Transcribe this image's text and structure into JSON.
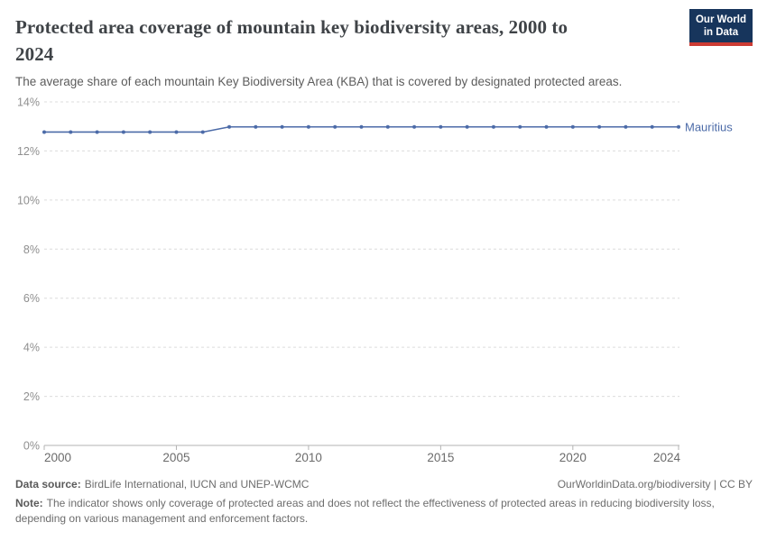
{
  "header": {
    "logo": {
      "line1": "Our World",
      "line2": "in Data",
      "bg_color": "#17355c",
      "accent_color": "#cc3b33"
    }
  },
  "chart_data": {
    "type": "line",
    "title": "Protected area coverage of mountain key biodiversity areas, 2000 to 2024",
    "subtitle": "The average share of each mountain Key Biodiversity Area (KBA) that is covered by designated protected areas.",
    "x": [
      2000,
      2001,
      2002,
      2003,
      2004,
      2005,
      2006,
      2007,
      2008,
      2009,
      2010,
      2011,
      2012,
      2013,
      2014,
      2015,
      2016,
      2017,
      2018,
      2019,
      2020,
      2021,
      2022,
      2023,
      2024
    ],
    "series": [
      {
        "name": "Mauritius",
        "color": "#4C6BA8",
        "values": [
          12.77,
          12.77,
          12.77,
          12.77,
          12.77,
          12.77,
          12.77,
          12.98,
          12.98,
          12.98,
          12.98,
          12.98,
          12.98,
          12.98,
          12.98,
          12.98,
          12.98,
          12.98,
          12.98,
          12.98,
          12.98,
          12.98,
          12.98,
          12.98,
          12.98
        ]
      }
    ],
    "xlim": [
      2000,
      2024
    ],
    "ylim": [
      0,
      14
    ],
    "yticks": [
      {
        "value": 0,
        "label": "0%"
      },
      {
        "value": 2,
        "label": "2%"
      },
      {
        "value": 4,
        "label": "4%"
      },
      {
        "value": 6,
        "label": "6%"
      },
      {
        "value": 8,
        "label": "8%"
      },
      {
        "value": 10,
        "label": "10%"
      },
      {
        "value": 12,
        "label": "12%"
      },
      {
        "value": 14,
        "label": "14%"
      }
    ],
    "xticks": [
      {
        "value": 2000,
        "label": "2000"
      },
      {
        "value": 2005,
        "label": "2005"
      },
      {
        "value": 2010,
        "label": "2010"
      },
      {
        "value": 2015,
        "label": "2015"
      },
      {
        "value": 2020,
        "label": "2020"
      },
      {
        "value": 2024,
        "label": "2024"
      }
    ],
    "grid": {
      "horizontal": true,
      "style": "dashed",
      "color": "#dcdcdc"
    },
    "legend_position": "end-of-line-label"
  },
  "footer": {
    "source_label": "Data source:",
    "source_text": "BirdLife International, IUCN and UNEP-WCMC",
    "credit": "OurWorldinData.org/biodiversity | CC BY",
    "note_label": "Note:",
    "note_text": "The indicator shows only coverage of protected areas and does not reflect the effectiveness of protected areas in reducing biodiversity loss, depending on various management and enforcement factors."
  }
}
